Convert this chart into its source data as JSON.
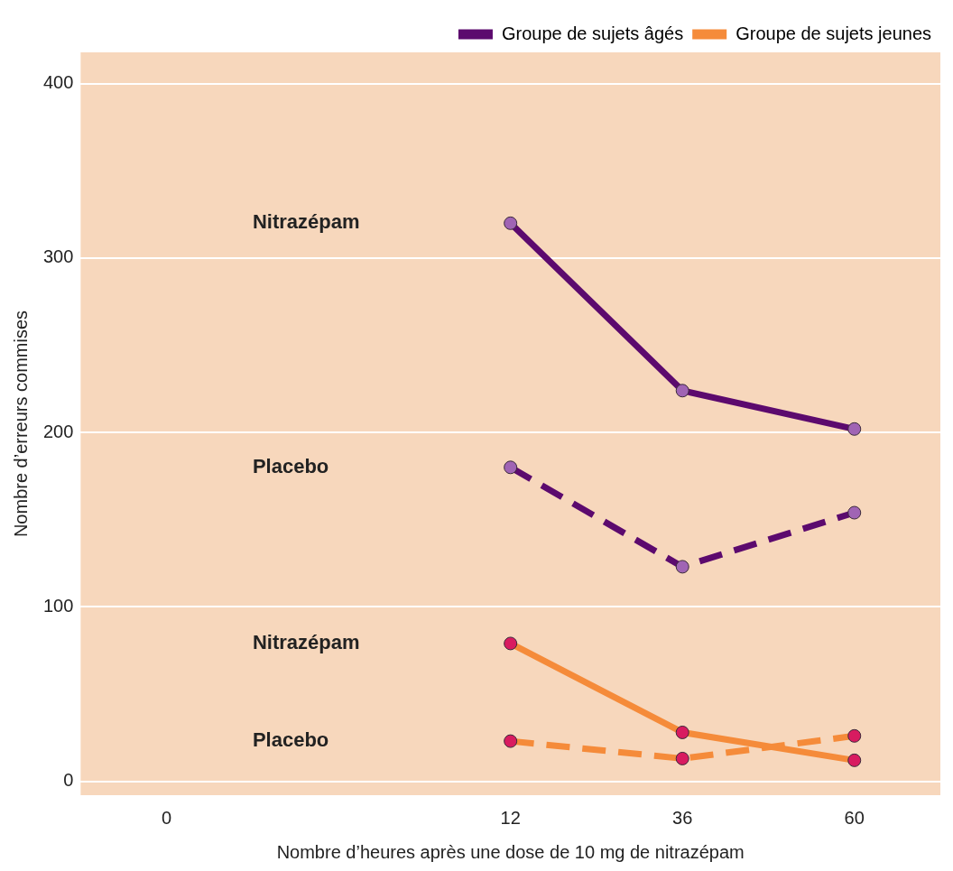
{
  "chart_data": {
    "type": "line",
    "xlabel": "Nombre d’heures après une dose de 10 mg de nitrazépam",
    "ylabel": "Nombre d’erreurs commises",
    "categories": [
      "0",
      null,
      "12",
      "36",
      "60"
    ],
    "series": [
      {
        "name": "Groupe de sujets âgés",
        "color": "#5c0a6e",
        "line_style": "solid",
        "colors": [
          "#a064b4",
          "#a064b4",
          "#a064b4",
          "#a064b4",
          "#a064b4"
        ],
        "values": [
          null,
          null,
          320,
          224,
          202
        ]
      },
      {
        "color": "#5c0a6e",
        "line_style": "dashed",
        "colors": [
          "#a064b4",
          "#a064b4",
          "#a064b4",
          "#a064b4",
          "#a064b4"
        ],
        "values": [
          null,
          null,
          180,
          123,
          154
        ]
      },
      {
        "name": "Groupe de sujets jeunes",
        "color": "#f58b3a",
        "line_style": "solid",
        "colors": [
          "#d81b60",
          "#d81b60",
          "#d81b60",
          "#d81b60",
          "#d81b60"
        ],
        "values": [
          null,
          null,
          79,
          28,
          12
        ]
      },
      {
        "color": "#f58b3a",
        "line_style": "dashed",
        "colors": [
          "#d81b60",
          "#d81b60",
          "#d81b60",
          "#d81b60",
          "#d81b60"
        ],
        "values": [
          null,
          null,
          23,
          13,
          26
        ]
      }
    ],
    "annotations": [
      "Nitrazépam",
      "Placebo",
      "Nitrazépam",
      "Placebo"
    ],
    "ylim": [
      -8,
      418
    ],
    "yticks": [
      0,
      100,
      200,
      300,
      400
    ],
    "grid": "y",
    "legend": "top right",
    "marker": "circle"
  }
}
